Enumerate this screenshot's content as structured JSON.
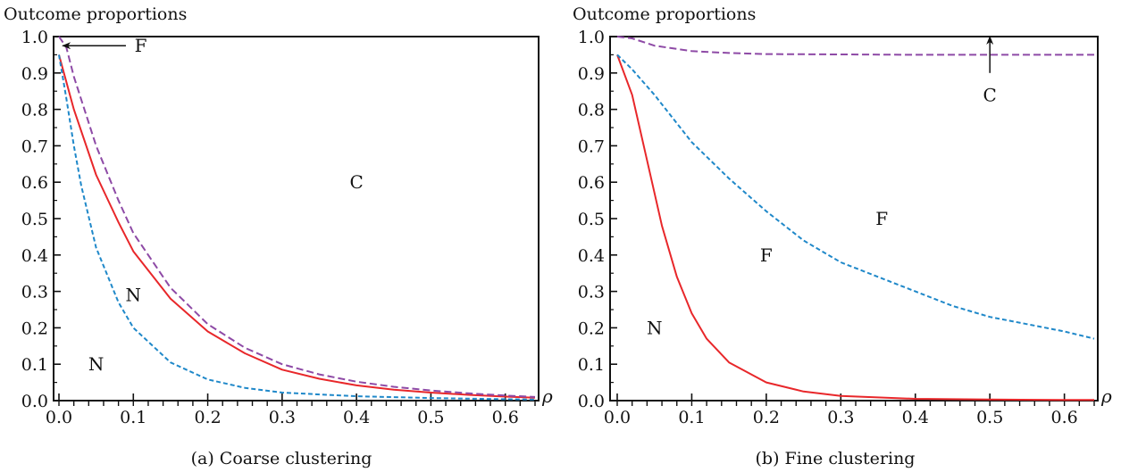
{
  "chart_data": [
    {
      "type": "line",
      "title": "Outcome proportions",
      "caption": "(a) Coarse clustering",
      "xlabel": "ρ",
      "xlim": [
        0,
        0.64
      ],
      "ylim": [
        0,
        1.0
      ],
      "x_ticks": [
        "0.0",
        "0.1",
        "0.2",
        "0.3",
        "0.4",
        "0.5",
        "0.6"
      ],
      "y_ticks": [
        "0.0",
        "0.1",
        "0.2",
        "0.3",
        "0.4",
        "0.5",
        "0.6",
        "0.7",
        "0.8",
        "0.9",
        "1.0"
      ],
      "series": [
        {
          "color": "#e8272a",
          "style": "solid",
          "x": [
            0,
            0.02,
            0.05,
            0.08,
            0.1,
            0.15,
            0.2,
            0.25,
            0.3,
            0.35,
            0.4,
            0.45,
            0.5,
            0.55,
            0.6,
            0.64
          ],
          "y": [
            0.95,
            0.8,
            0.62,
            0.49,
            0.41,
            0.28,
            0.19,
            0.13,
            0.085,
            0.06,
            0.042,
            0.03,
            0.022,
            0.016,
            0.011,
            0.008
          ]
        },
        {
          "color": "#1f88c9",
          "style": "dotted",
          "x": [
            0,
            0.01,
            0.02,
            0.03,
            0.05,
            0.08,
            0.1,
            0.15,
            0.2,
            0.25,
            0.3,
            0.4,
            0.5,
            0.6,
            0.64
          ],
          "y": [
            0.95,
            0.83,
            0.7,
            0.59,
            0.42,
            0.27,
            0.2,
            0.105,
            0.058,
            0.035,
            0.022,
            0.012,
            0.007,
            0.004,
            0.003
          ]
        },
        {
          "color": "#8e4aa6",
          "style": "dashed",
          "x": [
            0,
            0.01,
            0.02,
            0.05,
            0.08,
            0.1,
            0.15,
            0.2,
            0.25,
            0.3,
            0.35,
            0.4,
            0.45,
            0.5,
            0.55,
            0.6,
            0.64
          ],
          "y": [
            1.0,
            0.97,
            0.89,
            0.7,
            0.55,
            0.46,
            0.31,
            0.21,
            0.145,
            0.1,
            0.072,
            0.052,
            0.038,
            0.028,
            0.02,
            0.014,
            0.01
          ]
        }
      ],
      "region_labels": [
        {
          "text": "F",
          "x": 0.11,
          "y": 0.975
        },
        {
          "text": "C",
          "x": 0.4,
          "y": 0.6
        },
        {
          "text": "N",
          "x": 0.1,
          "y": 0.29
        },
        {
          "text": "N",
          "x": 0.05,
          "y": 0.1
        }
      ],
      "arrows": [
        {
          "from": [
            0.09,
            0.975
          ],
          "to": [
            0.005,
            0.975
          ]
        }
      ]
    },
    {
      "type": "line",
      "title": "Outcome proportions",
      "caption": "(b) Fine clustering",
      "xlabel": "ρ",
      "xlim": [
        0,
        0.64
      ],
      "ylim": [
        0,
        1.0
      ],
      "x_ticks": [
        "0.0",
        "0.1",
        "0.2",
        "0.3",
        "0.4",
        "0.5",
        "0.6"
      ],
      "y_ticks": [
        "0.0",
        "0.1",
        "0.2",
        "0.3",
        "0.4",
        "0.5",
        "0.6",
        "0.7",
        "0.8",
        "0.9",
        "1.0"
      ],
      "series": [
        {
          "color": "#e8272a",
          "style": "solid",
          "x": [
            0,
            0.02,
            0.04,
            0.06,
            0.08,
            0.1,
            0.12,
            0.15,
            0.2,
            0.25,
            0.3,
            0.4,
            0.5,
            0.6,
            0.64
          ],
          "y": [
            0.95,
            0.84,
            0.66,
            0.48,
            0.34,
            0.24,
            0.17,
            0.105,
            0.05,
            0.025,
            0.013,
            0.005,
            0.003,
            0.002,
            0.002
          ]
        },
        {
          "color": "#1f88c9",
          "style": "dotted",
          "x": [
            0,
            0.02,
            0.05,
            0.1,
            0.15,
            0.2,
            0.25,
            0.3,
            0.35,
            0.4,
            0.45,
            0.5,
            0.55,
            0.6,
            0.64
          ],
          "y": [
            0.95,
            0.91,
            0.84,
            0.71,
            0.61,
            0.52,
            0.44,
            0.38,
            0.34,
            0.3,
            0.26,
            0.23,
            0.21,
            0.19,
            0.17
          ]
        },
        {
          "color": "#8e4aa6",
          "style": "dashed",
          "x": [
            0,
            0.02,
            0.05,
            0.1,
            0.15,
            0.2,
            0.3,
            0.4,
            0.5,
            0.64
          ],
          "y": [
            1.0,
            0.995,
            0.975,
            0.96,
            0.955,
            0.952,
            0.951,
            0.95,
            0.95,
            0.95
          ]
        }
      ],
      "region_labels": [
        {
          "text": "C",
          "x": 0.5,
          "y": 0.84
        },
        {
          "text": "F",
          "x": 0.355,
          "y": 0.5
        },
        {
          "text": "F",
          "x": 0.2,
          "y": 0.4
        },
        {
          "text": "N",
          "x": 0.05,
          "y": 0.2
        }
      ],
      "arrows": [
        {
          "from": [
            0.5,
            0.9
          ],
          "to": [
            0.5,
            1.0
          ]
        }
      ]
    }
  ]
}
